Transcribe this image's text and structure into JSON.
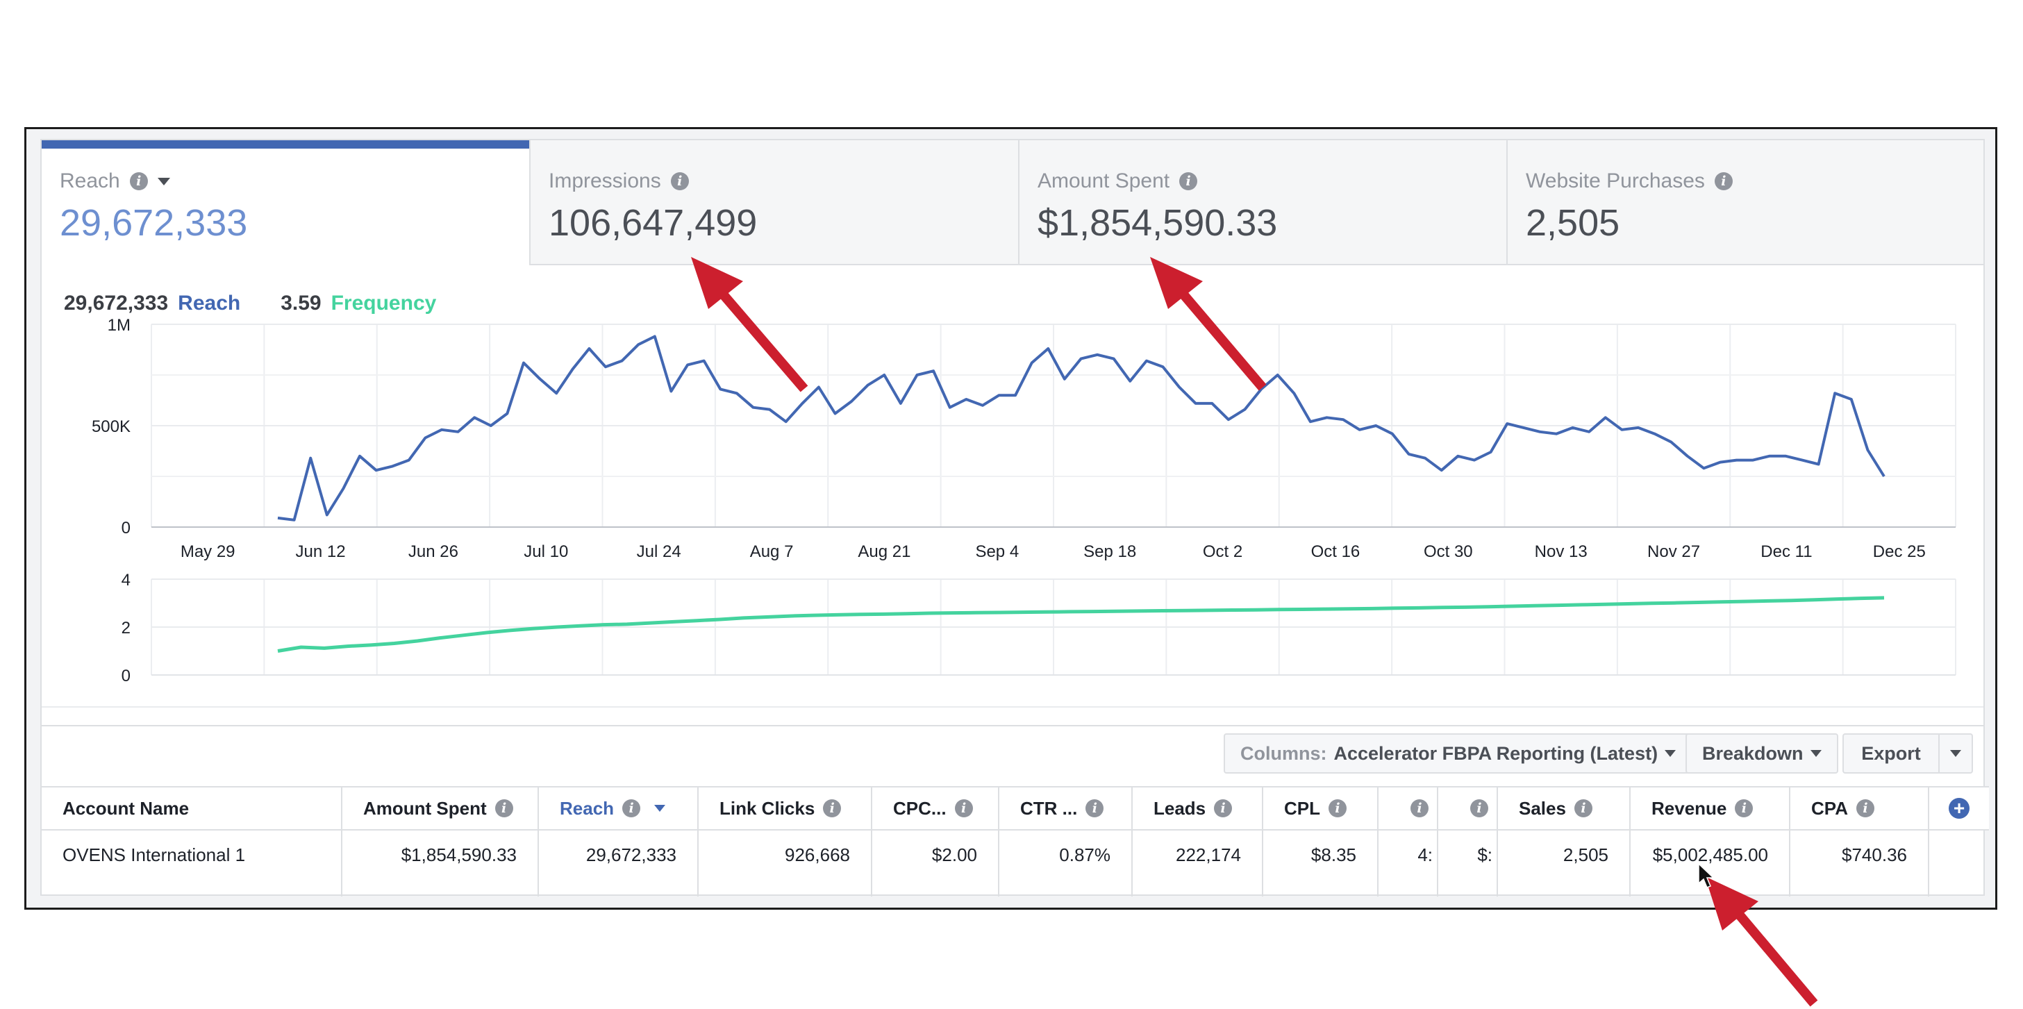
{
  "metric_tabs": [
    {
      "label": "Reach",
      "value": "29,672,333",
      "active": true
    },
    {
      "label": "Impressions",
      "value": "106,647,499"
    },
    {
      "label": "Amount Spent",
      "value": "$1,854,590.33"
    },
    {
      "label": "Website Purchases",
      "value": "2,505"
    }
  ],
  "legend": {
    "reach_value": "29,672,333",
    "reach_label": "Reach",
    "freq_value": "3.59",
    "freq_label": "Frequency"
  },
  "colors": {
    "reach": "#4267b2",
    "frequency": "#44d39e",
    "arrow": "#cc1f2e",
    "accent": "#4267b2"
  },
  "icons": [
    "info-icon",
    "caret-down-icon",
    "plus-circle-icon",
    "cursor-icon",
    "red-arrow-annotation"
  ],
  "chart_data": [
    {
      "type": "line",
      "series": [
        {
          "name": "Reach",
          "values": [
            45,
            35,
            340,
            60,
            190,
            350,
            280,
            300,
            330,
            440,
            480,
            470,
            540,
            500,
            560,
            810,
            730,
            660,
            780,
            880,
            790,
            820,
            900,
            940,
            670,
            800,
            820,
            680,
            660,
            590,
            580,
            520,
            610,
            690,
            560,
            620,
            700,
            750,
            610,
            750,
            770,
            590,
            630,
            600,
            650,
            650,
            810,
            880,
            730,
            830,
            850,
            830,
            720,
            820,
            790,
            690,
            610,
            610,
            530,
            580,
            680,
            750,
            660,
            520,
            540,
            530,
            480,
            500,
            460,
            360,
            340,
            280,
            350,
            330,
            370,
            510,
            490,
            470,
            460,
            490,
            470,
            540,
            480,
            490,
            460,
            420,
            350,
            290,
            320,
            330,
            330,
            350,
            350,
            330,
            310,
            660,
            630,
            380,
            250
          ]
        }
      ],
      "x_ticks": [
        "May 29",
        "Jun 12",
        "Jun 26",
        "Jul 10",
        "Jul 24",
        "Aug 7",
        "Aug 21",
        "Sep 4",
        "Sep 18",
        "Oct 2",
        "Oct 16",
        "Oct 30",
        "Nov 13",
        "Nov 27",
        "Dec 11",
        "Dec 25"
      ],
      "y_ticks": [
        "0",
        "500K",
        "1M"
      ],
      "ylim": [
        0,
        1000000
      ],
      "grid": true
    },
    {
      "type": "line",
      "series": [
        {
          "name": "Frequency",
          "values": [
            1.0,
            1.16,
            1.12,
            1.2,
            1.25,
            1.32,
            1.42,
            1.55,
            1.66,
            1.77,
            1.86,
            1.94,
            2.0,
            2.05,
            2.1,
            2.12,
            2.17,
            2.22,
            2.27,
            2.32,
            2.38,
            2.42,
            2.46,
            2.49,
            2.51,
            2.53,
            2.54,
            2.56,
            2.58,
            2.59,
            2.6,
            2.61,
            2.62,
            2.63,
            2.64,
            2.65,
            2.66,
            2.67,
            2.68,
            2.69,
            2.7,
            2.71,
            2.72,
            2.73,
            2.74,
            2.75,
            2.76,
            2.77,
            2.79,
            2.8,
            2.82,
            2.83,
            2.85,
            2.87,
            2.89,
            2.91,
            2.93,
            2.95,
            2.97,
            2.99,
            3.01,
            3.03,
            3.05,
            3.07,
            3.09,
            3.11,
            3.14,
            3.17,
            3.2,
            3.22
          ]
        }
      ],
      "y_ticks": [
        "0",
        "2",
        "4"
      ],
      "ylim": [
        0,
        4
      ],
      "grid": true
    }
  ],
  "toolbar": {
    "columns_prefix": "Columns:",
    "columns_value": "Accelerator FBPA Reporting (Latest)",
    "breakdown_label": "Breakdown",
    "export_label": "Export"
  },
  "table": {
    "headers": [
      "Account Name",
      "Amount Spent",
      "Reach",
      "Link Clicks",
      "CPC...",
      "CTR ...",
      "Leads",
      "CPL",
      "",
      "",
      "Sales",
      "Revenue",
      "CPA"
    ],
    "row": [
      "OVENS International 1",
      "$1,854,590.33",
      "29,672,333",
      "926,668",
      "$2.00",
      "0.87%",
      "222,174",
      "$8.35",
      "4:",
      "$:",
      "2,505",
      "$5,002,485.00",
      "$740.36"
    ]
  }
}
